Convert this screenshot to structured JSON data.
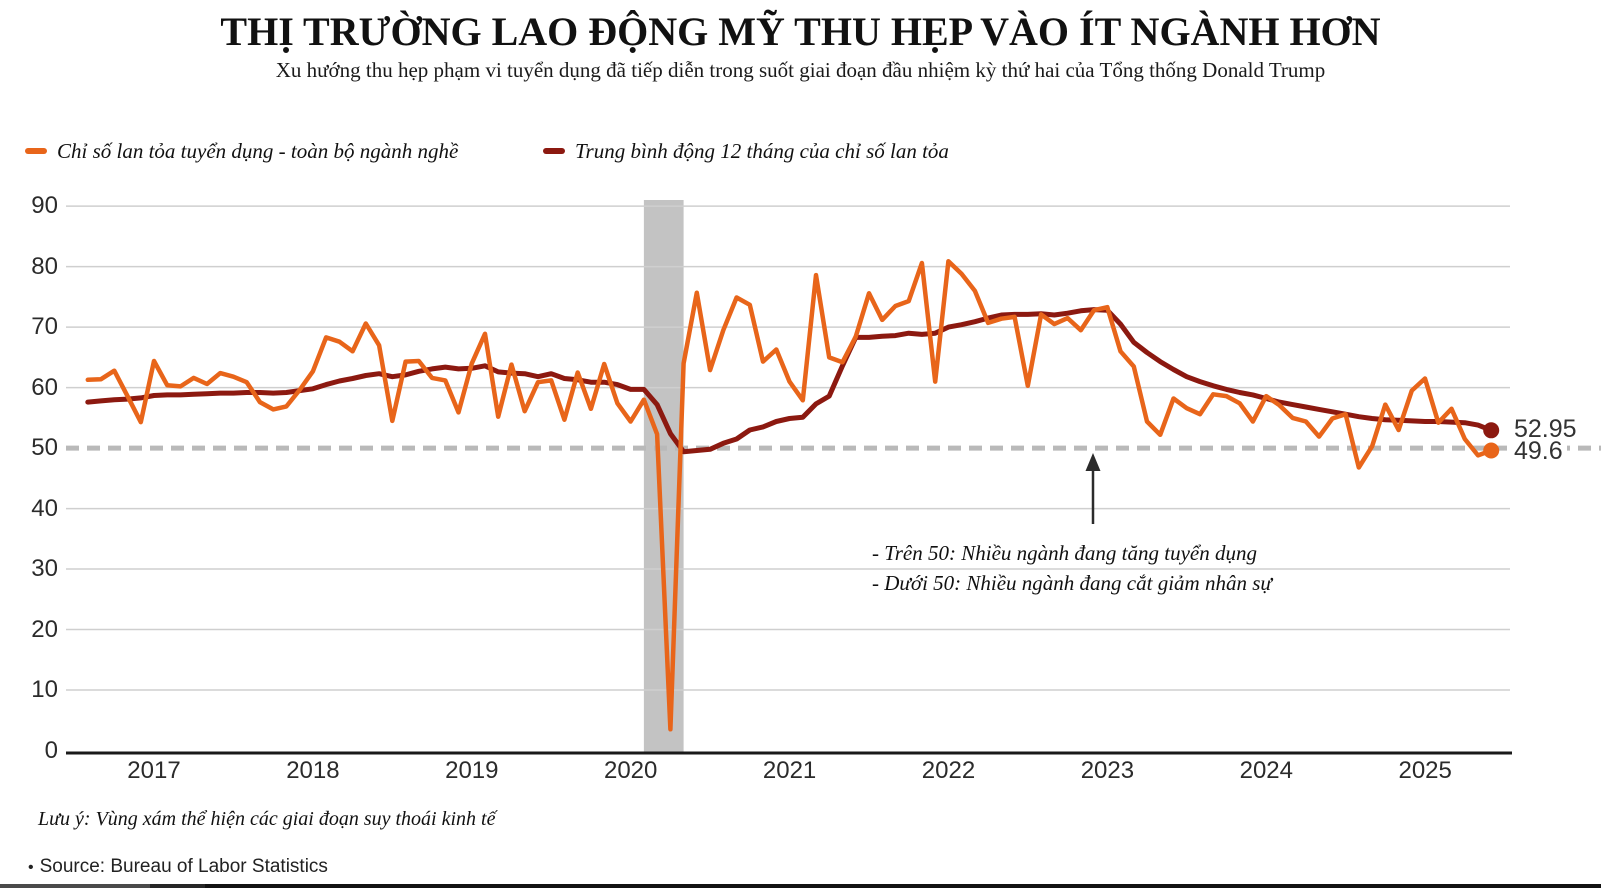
{
  "header": {
    "title": "THỊ TRƯỜNG LAO ĐỘNG MỸ THU HẸP VÀO ÍT NGÀNH HƠN",
    "subtitle": "Xu hướng thu hẹp phạm vi tuyển dụng đã tiếp diễn trong suốt giai đoạn đầu nhiệm kỳ thứ hai của Tổng thống Donald Trump"
  },
  "legend": [
    {
      "label": "Chỉ số lan tỏa tuyển dụng - toàn bộ ngành nghề",
      "color": "#E8651A"
    },
    {
      "label": "Trung bình động 12 tháng của chỉ số lan tỏa",
      "color": "#8C1910"
    }
  ],
  "chart_data": {
    "type": "line",
    "title": "THỊ TRƯỜNG LAO ĐỘNG MỸ THU HẸP VÀO ÍT NGÀNH HƠN",
    "ylabel": "",
    "xlabel": "",
    "ylim": [
      0,
      90
    ],
    "yticks": [
      0,
      10,
      20,
      30,
      40,
      50,
      60,
      70,
      80,
      90
    ],
    "xticks": [
      "2017",
      "2018",
      "2019",
      "2020",
      "2021",
      "2022",
      "2023",
      "2024",
      "2025"
    ],
    "grid": "horizontal",
    "legend_position": "top-left",
    "reference_line": {
      "value": 50,
      "style": "dashed",
      "color": "#b9b9b9"
    },
    "recession_band": {
      "start": "2020-02",
      "end": "2020-05",
      "color": "#c3c3c3"
    },
    "colors": {
      "band": "#c3c3c3",
      "dashed": "#b9b9b9",
      "grid": "#cfcfcf",
      "axis": "#1a1a1a"
    },
    "x": [
      "2016-08",
      "2016-09",
      "2016-10",
      "2016-11",
      "2016-12",
      "2017-01",
      "2017-02",
      "2017-03",
      "2017-04",
      "2017-05",
      "2017-06",
      "2017-07",
      "2017-08",
      "2017-09",
      "2017-10",
      "2017-11",
      "2017-12",
      "2018-01",
      "2018-02",
      "2018-03",
      "2018-04",
      "2018-05",
      "2018-06",
      "2018-07",
      "2018-08",
      "2018-09",
      "2018-10",
      "2018-11",
      "2018-12",
      "2019-01",
      "2019-02",
      "2019-03",
      "2019-04",
      "2019-05",
      "2019-06",
      "2019-07",
      "2019-08",
      "2019-09",
      "2019-10",
      "2019-11",
      "2019-12",
      "2020-01",
      "2020-02",
      "2020-03",
      "2020-04",
      "2020-05",
      "2020-06",
      "2020-07",
      "2020-08",
      "2020-09",
      "2020-10",
      "2020-11",
      "2020-12",
      "2021-01",
      "2021-02",
      "2021-03",
      "2021-04",
      "2021-05",
      "2021-06",
      "2021-07",
      "2021-08",
      "2021-09",
      "2021-10",
      "2021-11",
      "2021-12",
      "2022-01",
      "2022-02",
      "2022-03",
      "2022-04",
      "2022-05",
      "2022-06",
      "2022-07",
      "2022-08",
      "2022-09",
      "2022-10",
      "2022-11",
      "2022-12",
      "2023-01",
      "2023-02",
      "2023-03",
      "2023-04",
      "2023-05",
      "2023-06",
      "2023-07",
      "2023-08",
      "2023-09",
      "2023-10",
      "2023-11",
      "2023-12",
      "2024-01",
      "2024-02",
      "2024-03",
      "2024-04",
      "2024-05",
      "2024-06",
      "2024-07",
      "2024-08",
      "2024-09",
      "2024-10",
      "2024-11",
      "2024-12",
      "2025-01",
      "2025-02",
      "2025-03",
      "2025-04",
      "2025-05",
      "2025-06"
    ],
    "series": [
      {
        "name": "Chỉ số lan tỏa tuyển dụng - toàn bộ ngành nghề",
        "color": "#E8651A",
        "values": [
          61.3,
          61.4,
          62.8,
          58.6,
          54.3,
          64.4,
          60.4,
          60.2,
          61.6,
          60.6,
          62.4,
          61.8,
          60.9,
          57.6,
          56.4,
          56.9,
          59.6,
          62.7,
          68.3,
          67.6,
          66.0,
          70.6,
          67.0,
          54.5,
          64.3,
          64.4,
          61.6,
          61.2,
          55.9,
          64.0,
          68.9,
          55.2,
          63.8,
          56.1,
          60.9,
          61.2,
          54.7,
          62.5,
          56.5,
          63.9,
          57.4,
          54.4,
          58.0,
          52.3,
          3.5,
          64.0,
          75.7,
          62.9,
          69.5,
          74.9,
          73.7,
          64.3,
          66.3,
          61.0,
          57.9,
          78.6,
          65.0,
          64.2,
          68.4,
          75.6,
          71.2,
          73.5,
          74.3,
          80.6,
          61.0,
          80.9,
          78.8,
          76.0,
          70.7,
          71.4,
          71.7,
          60.3,
          72.1,
          70.5,
          71.5,
          69.5,
          72.8,
          73.3,
          66.0,
          63.5,
          54.4,
          52.2,
          58.2,
          56.6,
          55.6,
          58.9,
          58.6,
          57.4,
          54.4,
          58.6,
          57.1,
          55.0,
          54.4,
          51.9,
          54.9,
          55.6,
          46.8,
          50.3,
          57.2,
          53.0,
          59.5,
          61.5,
          54.2,
          56.5,
          51.5,
          48.8,
          49.6
        ]
      },
      {
        "name": "Trung bình động 12 tháng của chỉ số lan tỏa",
        "color": "#8C1910",
        "values": [
          57.6,
          57.8,
          58.0,
          58.1,
          58.3,
          58.7,
          58.8,
          58.8,
          58.9,
          59.0,
          59.1,
          59.1,
          59.2,
          59.2,
          59.1,
          59.2,
          59.5,
          59.8,
          60.5,
          61.1,
          61.5,
          62.0,
          62.3,
          61.8,
          62.1,
          62.7,
          63.1,
          63.4,
          63.1,
          63.2,
          63.6,
          62.6,
          62.4,
          62.3,
          61.8,
          62.3,
          61.5,
          61.3,
          60.9,
          60.9,
          60.5,
          59.7,
          59.7,
          57.2,
          52.4,
          49.4,
          49.6,
          49.8,
          50.8,
          51.5,
          53.0,
          53.5,
          54.4,
          54.9,
          55.1,
          57.3,
          58.6,
          63.6,
          68.3,
          68.3,
          68.5,
          68.6,
          69.0,
          68.8,
          69.0,
          70.0,
          70.4,
          70.9,
          71.5,
          72.0,
          72.1,
          72.1,
          72.2,
          72.0,
          72.3,
          72.7,
          72.9,
          72.8,
          70.5,
          67.5,
          65.8,
          64.3,
          63.0,
          61.8,
          61.0,
          60.3,
          59.7,
          59.2,
          58.8,
          58.2,
          57.6,
          57.2,
          56.8,
          56.4,
          56.0,
          55.6,
          55.2,
          54.9,
          54.7,
          54.6,
          54.5,
          54.4,
          54.4,
          54.3,
          54.2,
          53.8,
          52.95
        ]
      }
    ],
    "end_labels": {
      "ma": "52.95",
      "index": "49.6"
    },
    "annotations": [
      "- Trên 50: Nhiều ngành đang tăng tuyển dụng",
      "- Dưới 50: Nhiều ngành đang cắt giảm nhân sự"
    ]
  },
  "footer": {
    "note": "Lưu ý: Vùng xám thể hiện các giai đoạn suy thoái kinh tế",
    "source_bullet": "•",
    "source": "Source: Bureau of Labor Statistics"
  }
}
